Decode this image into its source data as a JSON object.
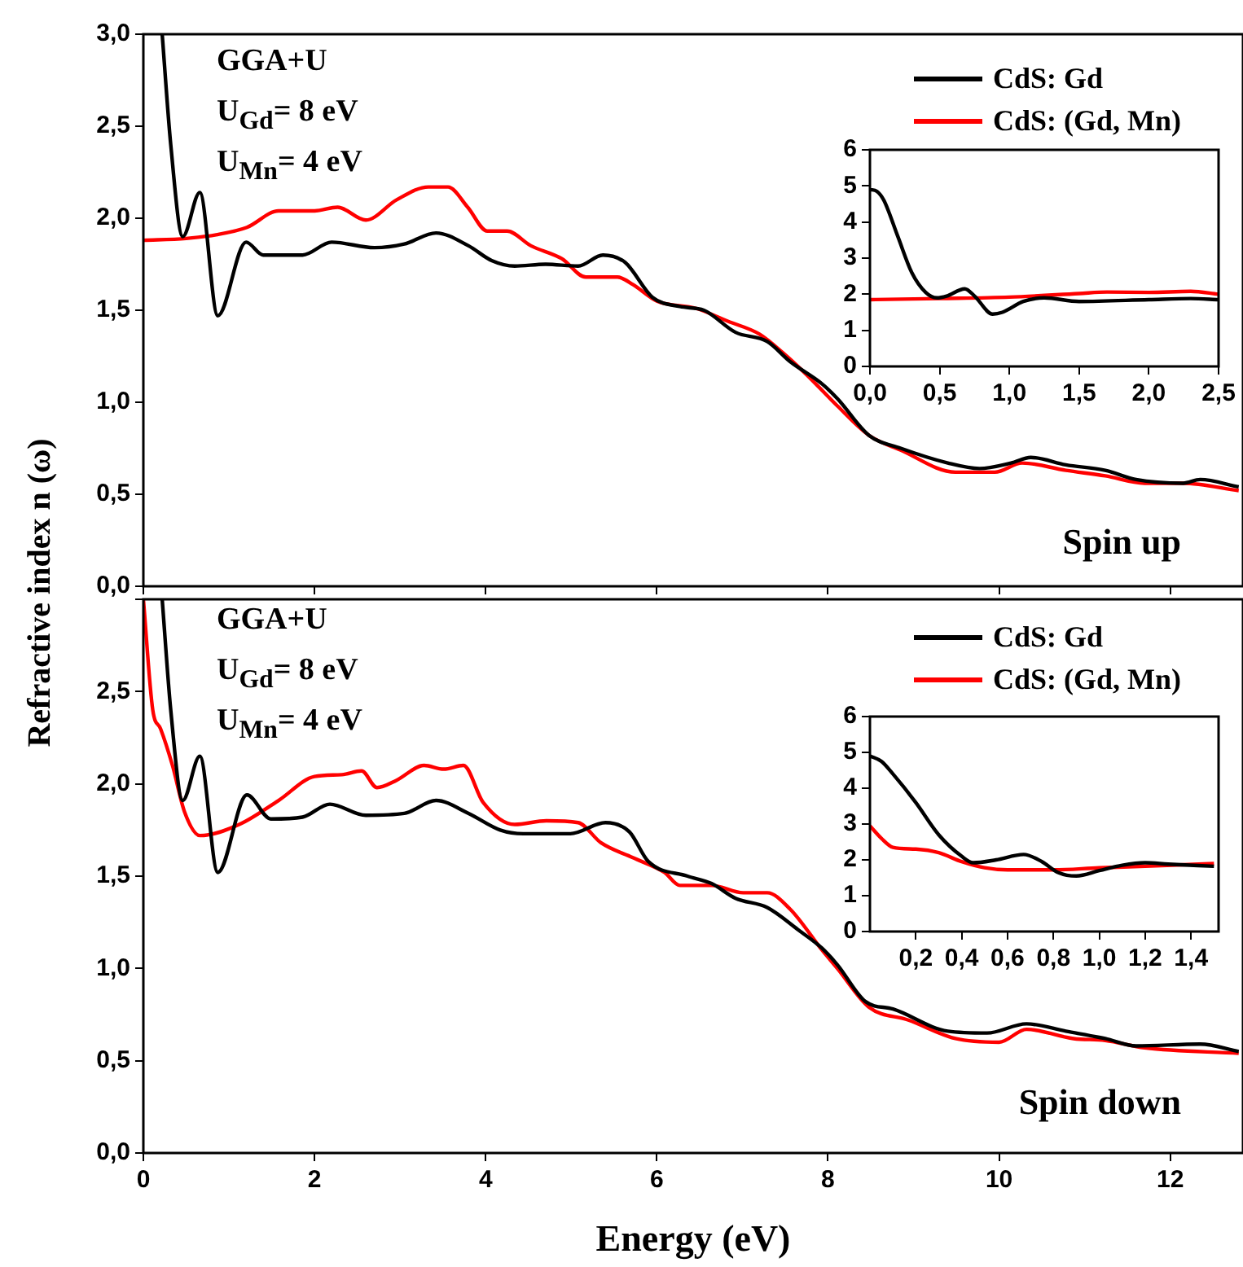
{
  "chart_data": [
    {
      "type": "line",
      "ylabel": "Refractive index n (ω)",
      "annotations": [
        "GGA+U",
        "U$_{Gd}$= 8 eV",
        "U$_{Mn}$= 4 eV",
        "Spin up"
      ],
      "legend": "top right",
      "tick_labels": "y",
      "marker": "none",
      "line_style": "solid",
      "xlim": [
        0,
        12.85
      ],
      "xticks": [
        0,
        2,
        4,
        6,
        8,
        10,
        12
      ],
      "ylim": [
        0,
        3
      ],
      "yticks": [
        {
          "value": 0,
          "label": "0,0"
        },
        {
          "value": 0.5,
          "label": "0,5"
        },
        {
          "value": 1,
          "label": "1,0"
        },
        {
          "value": 1.5,
          "label": "1,5"
        },
        {
          "value": 2,
          "label": "2,0"
        },
        {
          "value": 2.5,
          "label": "2,5"
        },
        {
          "value": 3,
          "label": "3,0"
        }
      ],
      "series": [
        {
          "name": "CdS: Gd",
          "color": "#000000",
          "x": [
            0.22,
            0.32,
            0.46,
            0.66,
            0.87,
            1.2,
            1.4,
            1.86,
            2.2,
            2.7,
            3.05,
            3.42,
            3.8,
            4.07,
            4.34,
            4.7,
            5.08,
            5.37,
            5.63,
            5.95,
            6.27,
            6.55,
            6.92,
            7.29,
            7.56,
            7.93,
            8.11,
            8.48,
            8.85,
            9.4,
            9.77,
            10.14,
            10.37,
            10.78,
            11.24,
            11.6,
            12.15,
            12.35,
            12.8
          ],
          "values": [
            3.0,
            2.4,
            1.9,
            2.14,
            1.47,
            1.87,
            1.8,
            1.8,
            1.87,
            1.84,
            1.86,
            1.92,
            1.85,
            1.77,
            1.74,
            1.75,
            1.74,
            1.8,
            1.76,
            1.57,
            1.52,
            1.5,
            1.38,
            1.33,
            1.22,
            1.1,
            1.02,
            0.82,
            0.75,
            0.67,
            0.64,
            0.67,
            0.7,
            0.66,
            0.63,
            0.58,
            0.56,
            0.58,
            0.54
          ]
        },
        {
          "name": "CdS: (Gd, Mn)",
          "color": "#ff0000",
          "x": [
            0,
            0.5,
            0.85,
            1.21,
            1.58,
            2.0,
            2.27,
            2.6,
            2.96,
            3.33,
            3.56,
            3.79,
            4.02,
            4.25,
            4.53,
            4.89,
            5.17,
            5.54,
            5.72,
            6.0,
            6.46,
            6.83,
            7.2,
            7.47,
            7.75,
            8.11,
            8.48,
            8.85,
            9.49,
            9.95,
            10.27,
            10.78,
            11.24,
            11.7,
            12.15,
            12.8
          ],
          "values": [
            1.88,
            1.89,
            1.91,
            1.95,
            2.04,
            2.04,
            2.06,
            1.99,
            2.1,
            2.17,
            2.17,
            2.06,
            1.93,
            1.93,
            1.85,
            1.78,
            1.68,
            1.68,
            1.64,
            1.55,
            1.51,
            1.44,
            1.37,
            1.27,
            1.15,
            0.98,
            0.82,
            0.74,
            0.62,
            0.62,
            0.67,
            0.63,
            0.6,
            0.56,
            0.56,
            0.52
          ]
        }
      ]
    },
    {
      "type": "line",
      "marker": "none",
      "line_style": "solid",
      "xlim": [
        0,
        2.5
      ],
      "xticks": [
        {
          "value": 0,
          "label": "0,0"
        },
        {
          "value": 0.5,
          "label": "0,5"
        },
        {
          "value": 1,
          "label": "1,0"
        },
        {
          "value": 1.5,
          "label": "1,5"
        },
        {
          "value": 2,
          "label": "2,0"
        },
        {
          "value": 2.5,
          "label": "2,5"
        }
      ],
      "ylim": [
        0,
        6
      ],
      "yticks": [
        0,
        1,
        2,
        3,
        4,
        5,
        6
      ],
      "series": [
        {
          "color": "#000000",
          "x": [
            0,
            0.05,
            0.1,
            0.2,
            0.3,
            0.4,
            0.48,
            0.55,
            0.68,
            0.75,
            0.88,
            0.95,
            1.1,
            1.25,
            1.5,
            2.0,
            2.3,
            2.5
          ],
          "values": [
            4.9,
            4.85,
            4.6,
            3.6,
            2.6,
            2.05,
            1.9,
            1.95,
            2.15,
            1.95,
            1.45,
            1.5,
            1.8,
            1.9,
            1.8,
            1.85,
            1.88,
            1.85
          ]
        },
        {
          "color": "#ff0000",
          "x": [
            0,
            0.5,
            1.0,
            1.5,
            1.7,
            2.0,
            2.3,
            2.5
          ],
          "values": [
            1.85,
            1.88,
            1.92,
            2.02,
            2.06,
            2.05,
            2.08,
            2.0
          ]
        }
      ]
    },
    {
      "type": "line",
      "xlabel": "Energy (eV)",
      "annotations": [
        "GGA+U",
        "U$_{Gd}$= 8 eV",
        "U$_{Mn}$= 4 eV",
        "Spin down"
      ],
      "legend": "top right",
      "marker": "none",
      "line_style": "solid",
      "xlim": [
        0,
        12.85
      ],
      "xticks": [
        0,
        2,
        4,
        6,
        8,
        10,
        12
      ],
      "ylim": [
        0,
        3
      ],
      "yticks": [
        {
          "value": 0,
          "label": "0,0"
        },
        {
          "value": 0.5,
          "label": "0,5"
        },
        {
          "value": 1,
          "label": "1,0"
        },
        {
          "value": 1.5,
          "label": "1,5"
        },
        {
          "value": 2,
          "label": "2,0"
        },
        {
          "value": 2.5,
          "label": "2,5"
        },
        {
          "value": 3,
          "label": null
        }
      ],
      "series": [
        {
          "name": "CdS: Gd",
          "color": "#000000",
          "x": [
            0.22,
            0.32,
            0.46,
            0.66,
            0.87,
            1.21,
            1.49,
            1.86,
            2.18,
            2.6,
            3.05,
            3.42,
            3.8,
            4.17,
            4.44,
            4.99,
            5.4,
            5.68,
            5.9,
            6.36,
            6.64,
            6.92,
            7.29,
            7.65,
            7.93,
            8.11,
            8.44,
            8.76,
            9.4,
            9.86,
            10.32,
            10.78,
            11.24,
            11.6,
            12.35,
            12.8
          ],
          "values": [
            3.0,
            2.4,
            1.91,
            2.15,
            1.52,
            1.94,
            1.81,
            1.82,
            1.89,
            1.83,
            1.84,
            1.91,
            1.84,
            1.75,
            1.73,
            1.73,
            1.79,
            1.74,
            1.58,
            1.5,
            1.46,
            1.38,
            1.33,
            1.21,
            1.11,
            1.02,
            0.82,
            0.78,
            0.66,
            0.65,
            0.7,
            0.66,
            0.62,
            0.58,
            0.59,
            0.55
          ]
        },
        {
          "name": "CdS: (Gd, Mn)",
          "color": "#ff0000",
          "x": [
            0,
            0.11,
            0.2,
            0.34,
            0.48,
            0.66,
            1.12,
            1.58,
            2.0,
            2.32,
            2.55,
            2.73,
            2.96,
            3.28,
            3.51,
            3.74,
            3.97,
            4.34,
            4.71,
            5.08,
            5.35,
            5.72,
            6.09,
            6.27,
            6.64,
            7.01,
            7.29,
            7.56,
            7.93,
            8.11,
            8.48,
            8.94,
            9.49,
            10.0,
            10.32,
            10.87,
            11.24,
            11.7,
            12.8
          ],
          "values": [
            3.0,
            2.4,
            2.3,
            2.1,
            1.85,
            1.72,
            1.78,
            1.91,
            2.04,
            2.05,
            2.07,
            1.98,
            2.02,
            2.1,
            2.08,
            2.1,
            1.9,
            1.78,
            1.8,
            1.79,
            1.68,
            1.6,
            1.52,
            1.45,
            1.45,
            1.41,
            1.41,
            1.32,
            1.1,
            1.0,
            0.79,
            0.72,
            0.62,
            0.6,
            0.67,
            0.62,
            0.61,
            0.57,
            0.54
          ]
        }
      ]
    },
    {
      "type": "line",
      "marker": "none",
      "line_style": "solid",
      "xlim": [
        0,
        1.52
      ],
      "xticks": [
        {
          "value": 0.2,
          "label": "0,2"
        },
        {
          "value": 0.4,
          "label": "0,4"
        },
        {
          "value": 0.6,
          "label": "0,6"
        },
        {
          "value": 0.8,
          "label": "0,8"
        },
        {
          "value": 1,
          "label": "1,0"
        },
        {
          "value": 1.2,
          "label": "1,2"
        },
        {
          "value": 1.4,
          "label": "1,4"
        }
      ],
      "ylim": [
        0,
        6
      ],
      "yticks": [
        0,
        1,
        2,
        3,
        4,
        5,
        6
      ],
      "series": [
        {
          "color": "#000000",
          "x": [
            0,
            0.05,
            0.1,
            0.2,
            0.3,
            0.4,
            0.45,
            0.55,
            0.67,
            0.75,
            0.82,
            0.9,
            1.0,
            1.1,
            1.2,
            1.3,
            1.5
          ],
          "values": [
            4.9,
            4.75,
            4.4,
            3.6,
            2.7,
            2.1,
            1.92,
            2.0,
            2.15,
            1.95,
            1.65,
            1.55,
            1.7,
            1.85,
            1.92,
            1.88,
            1.82
          ]
        },
        {
          "color": "#ff0000",
          "x": [
            0,
            0.05,
            0.1,
            0.2,
            0.3,
            0.4,
            0.5,
            0.6,
            0.8,
            1.0,
            1.2,
            1.5
          ],
          "values": [
            2.95,
            2.6,
            2.35,
            2.3,
            2.2,
            1.95,
            1.78,
            1.72,
            1.72,
            1.78,
            1.82,
            1.9
          ]
        }
      ]
    }
  ]
}
